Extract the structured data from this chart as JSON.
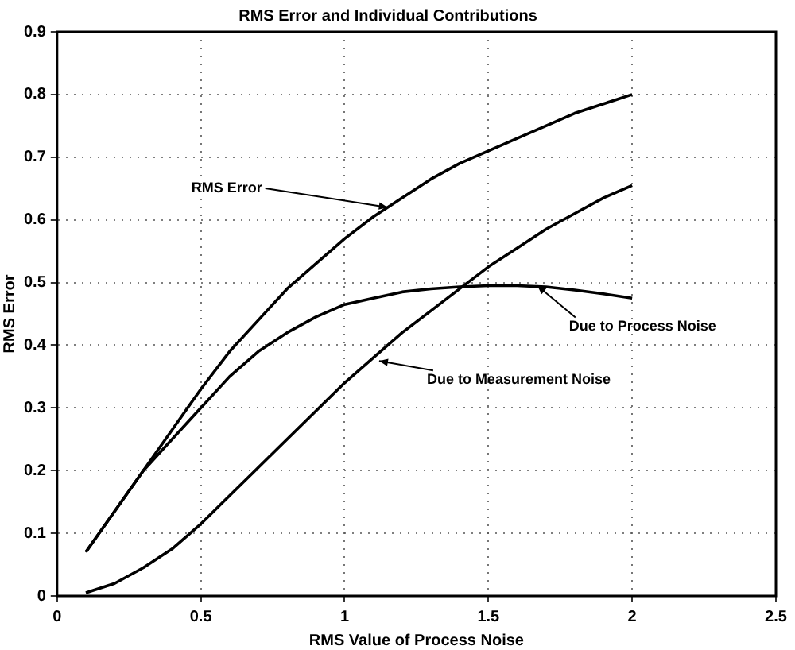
{
  "chart_data": {
    "type": "line",
    "title": "RMS Error and Individual Contributions",
    "xlabel": "RMS Value of Process Noise",
    "ylabel": "RMS Error",
    "x": [
      0.1,
      0.2,
      0.3,
      0.4,
      0.5,
      0.6,
      0.7,
      0.8,
      0.9,
      1.0,
      1.1,
      1.2,
      1.3,
      1.4,
      1.5,
      1.6,
      1.7,
      1.8,
      1.9,
      2.0
    ],
    "series": [
      {
        "color": "#000000",
        "values": [
          0.07,
          0.135,
          0.2,
          0.265,
          0.33,
          0.39,
          0.44,
          0.49,
          0.53,
          0.57,
          0.605,
          0.635,
          0.665,
          0.69,
          0.71,
          0.73,
          0.75,
          0.77,
          0.785,
          0.8
        ]
      },
      {
        "color": "#000000",
        "values": [
          0.07,
          0.135,
          0.2,
          0.25,
          0.3,
          0.35,
          0.39,
          0.42,
          0.445,
          0.465,
          0.475,
          0.485,
          0.49,
          0.493,
          0.495,
          0.495,
          0.493,
          0.488,
          0.482,
          0.475
        ]
      },
      {
        "color": "#000000",
        "values": [
          0.005,
          0.02,
          0.045,
          0.075,
          0.115,
          0.16,
          0.205,
          0.25,
          0.295,
          0.34,
          0.38,
          0.42,
          0.455,
          0.49,
          0.525,
          0.555,
          0.585,
          0.61,
          0.635,
          0.655
        ]
      }
    ],
    "annotations": [
      {
        "text": "RMS Error",
        "x": 1.15,
        "y": 0.62
      },
      {
        "text": "Due to Process Noise",
        "x": 1.67,
        "y": 0.495
      },
      {
        "text": "Due to Measurement Noise",
        "x": 1.12,
        "y": 0.375
      }
    ],
    "xlim": [
      0,
      2.5
    ],
    "xticks": [
      0,
      0.5,
      1,
      1.5,
      2,
      2.5
    ],
    "ylim": [
      0,
      0.9
    ],
    "yticks": [
      0,
      0.1,
      0.2,
      0.3,
      0.4,
      0.5,
      0.6,
      0.7,
      0.8,
      0.9
    ],
    "grid": true,
    "legend": false,
    "marker": "none",
    "line_style": "solid"
  }
}
